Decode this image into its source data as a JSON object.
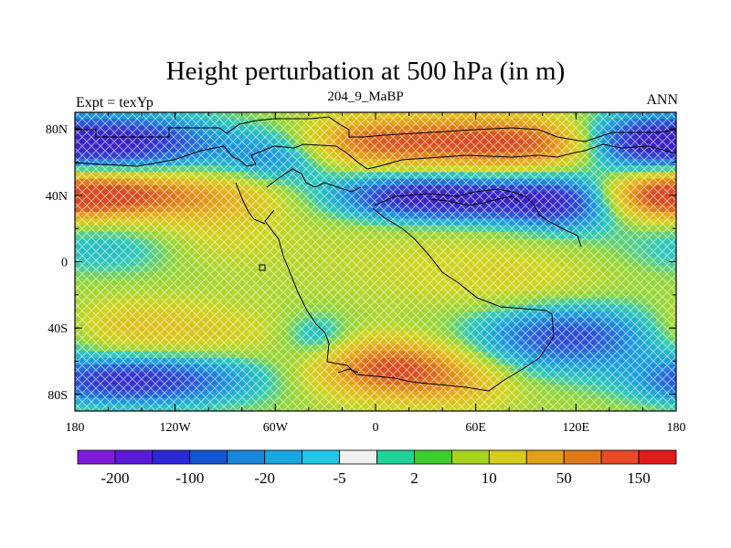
{
  "header": {
    "title": "Height perturbation at 500 hPa (in m)",
    "left": "Expt = texYp",
    "center": "204_9_MaBP",
    "right": "ANN"
  },
  "chart_data": {
    "type": "heatmap",
    "x_ticks": [
      "180",
      "120W",
      "60W",
      "0",
      "60E",
      "120E",
      "180"
    ],
    "x_tick_values": [
      -180,
      -120,
      -60,
      0,
      60,
      120,
      180
    ],
    "y_ticks": [
      "80N",
      "40N",
      "0",
      "40S",
      "80S"
    ],
    "y_tick_values": [
      80,
      40,
      0,
      -40,
      -80
    ],
    "xlim": [
      -180,
      180
    ],
    "ylim": [
      -90,
      90
    ],
    "colorbar": {
      "labels": [
        "-200",
        "-100",
        "-20",
        "-5",
        "2",
        "10",
        "50",
        "150"
      ],
      "colors": [
        "#7f1cd9",
        "#5a1ad8",
        "#2b28d6",
        "#1456d2",
        "#1a86d9",
        "#1aa6e0",
        "#22c7e8",
        "#f0f0f0",
        "#1fd39a",
        "#3fcc2e",
        "#a6d41e",
        "#d6cc1a",
        "#e0a01a",
        "#e07a18",
        "#e84a28",
        "#e01c1c"
      ]
    },
    "colormap_anchors": [
      {
        "v": -1.0,
        "c": "#3a22c8"
      },
      {
        "v": -0.7,
        "c": "#2a4fd8"
      },
      {
        "v": -0.4,
        "c": "#1a9ae0"
      },
      {
        "v": -0.15,
        "c": "#2ec9b8"
      },
      {
        "v": 0.0,
        "c": "#8fd63a"
      },
      {
        "v": 0.2,
        "c": "#cfd41e"
      },
      {
        "v": 0.5,
        "c": "#e6b01a"
      },
      {
        "v": 0.8,
        "c": "#e07a18"
      },
      {
        "v": 1.0,
        "c": "#d94a20"
      }
    ]
  }
}
